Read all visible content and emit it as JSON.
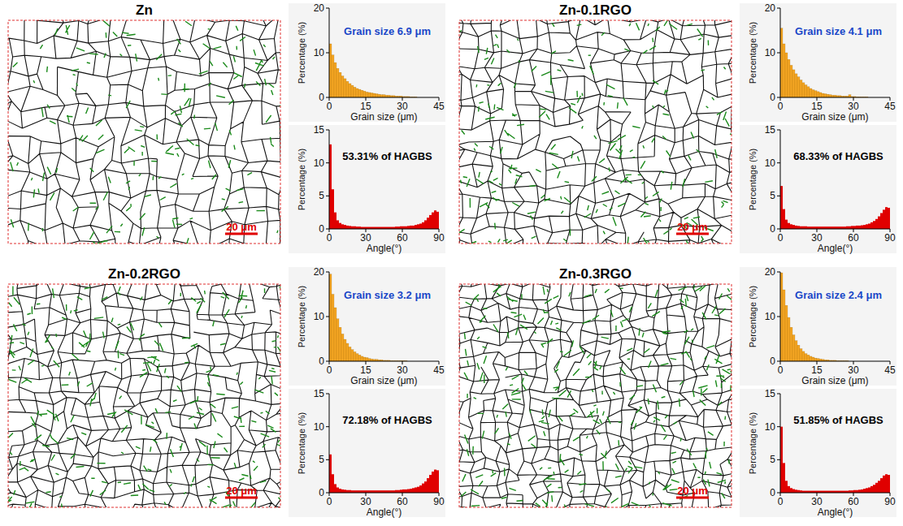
{
  "panels": [
    {
      "title": "Zn",
      "scale_bar": "20 μm"
    },
    {
      "title": "Zn-0.1RGO",
      "scale_bar": "20 μm"
    },
    {
      "title": "Zn-0.2RGO",
      "scale_bar": "20 μm"
    },
    {
      "title": "Zn-0.3RGO",
      "scale_bar": "20 μm"
    }
  ],
  "chart_data": [
    {
      "type": "histogram",
      "annotation": "Grain size 6.9 μm",
      "x_label": "Grain size (μm)",
      "y_label": "Percentage (%)",
      "color": "#f5a623",
      "bins": [
        0,
        1,
        2,
        3,
        4,
        5,
        6,
        7,
        8,
        9,
        10,
        11,
        12,
        13,
        14,
        15,
        16,
        17,
        18,
        19,
        20,
        21,
        22,
        23,
        24,
        25,
        26,
        27,
        28,
        29,
        30,
        31,
        32,
        33,
        34,
        35,
        36
      ],
      "values": [
        12,
        9.5,
        7.8,
        6.5,
        5.6,
        4.8,
        4.2,
        3.6,
        3.1,
        2.7,
        2.3,
        2.0,
        1.8,
        1.6,
        1.4,
        1.2,
        1.1,
        1.0,
        0.9,
        0.8,
        0.7,
        0.6,
        0.6,
        0.5,
        0.5,
        0.4,
        0.4,
        0.3,
        0.3,
        0.3,
        0.2,
        0.2,
        0.2,
        0.1,
        0.1,
        0.1
      ],
      "xlim": [
        0,
        45
      ],
      "ylim": [
        0,
        20
      ],
      "xticks": [
        0,
        15,
        30,
        45
      ],
      "yticks": [
        0,
        10,
        20
      ]
    },
    {
      "type": "histogram",
      "annotation": "53.31% of HAGBS",
      "x_label": "Angle(°)",
      "y_label": "Percentage (%)",
      "color": "#e00000",
      "bins": [
        0,
        2,
        4,
        6,
        8,
        10,
        12,
        14,
        16,
        18,
        20,
        22,
        24,
        26,
        28,
        30,
        32,
        34,
        36,
        38,
        40,
        42,
        44,
        46,
        48,
        50,
        52,
        54,
        56,
        58,
        60,
        62,
        64,
        66,
        68,
        70,
        72,
        74,
        76,
        78,
        80,
        82,
        84,
        86,
        88,
        90
      ],
      "values": [
        12.8,
        6.0,
        2.5,
        1.3,
        0.9,
        0.7,
        0.6,
        0.5,
        0.45,
        0.4,
        0.4,
        0.35,
        0.35,
        0.3,
        0.3,
        0.3,
        0.3,
        0.3,
        0.3,
        0.3,
        0.3,
        0.3,
        0.3,
        0.3,
        0.3,
        0.3,
        0.3,
        0.35,
        0.35,
        0.4,
        0.4,
        0.4,
        0.45,
        0.5,
        0.5,
        0.6,
        0.7,
        0.8,
        1.0,
        1.3,
        1.7,
        2.1,
        2.5,
        2.8,
        2.6
      ],
      "xlim": [
        0,
        90
      ],
      "ylim": [
        0,
        15
      ],
      "xticks": [
        0,
        30,
        60,
        90
      ],
      "yticks": [
        0,
        5,
        10,
        15
      ]
    },
    {
      "type": "histogram",
      "annotation": "Grain size 4.1 μm",
      "x_label": "Grain size (μm)",
      "y_label": "Percentage (%)",
      "color": "#f5a623",
      "bins": [
        0,
        1,
        2,
        3,
        4,
        5,
        6,
        7,
        8,
        9,
        10,
        11,
        12,
        13,
        14,
        15,
        16,
        17,
        18,
        19,
        20,
        21,
        22,
        23,
        24,
        25,
        26,
        27,
        28,
        29,
        30,
        31,
        32,
        33,
        34,
        35,
        36
      ],
      "values": [
        15.5,
        12,
        10,
        8.5,
        7.2,
        6.2,
        5.3,
        4.6,
        3.9,
        3.3,
        2.8,
        2.4,
        2.0,
        1.7,
        1.5,
        1.3,
        1.1,
        0.9,
        0.8,
        0.7,
        0.6,
        0.5,
        0.5,
        0.4,
        0.4,
        0.3,
        0.3,
        0.3,
        0.6,
        0.2,
        0.2,
        0.1,
        0.1,
        0.1,
        0.1,
        0.1
      ],
      "xlim": [
        0,
        45
      ],
      "ylim": [
        0,
        20
      ],
      "xticks": [
        0,
        15,
        30,
        45
      ],
      "yticks": [
        0,
        10,
        20
      ]
    },
    {
      "type": "histogram",
      "annotation": "68.33% of HAGBS",
      "x_label": "Angle(°)",
      "y_label": "Percentage (%)",
      "color": "#e00000",
      "bins": [
        0,
        2,
        4,
        6,
        8,
        10,
        12,
        14,
        16,
        18,
        20,
        22,
        24,
        26,
        28,
        30,
        32,
        34,
        36,
        38,
        40,
        42,
        44,
        46,
        48,
        50,
        52,
        54,
        56,
        58,
        60,
        62,
        64,
        66,
        68,
        70,
        72,
        74,
        76,
        78,
        80,
        82,
        84,
        86,
        88,
        90
      ],
      "values": [
        6.5,
        3.0,
        1.4,
        0.9,
        0.7,
        0.6,
        0.5,
        0.45,
        0.4,
        0.4,
        0.4,
        0.35,
        0.35,
        0.35,
        0.35,
        0.35,
        0.35,
        0.35,
        0.35,
        0.35,
        0.35,
        0.35,
        0.35,
        0.35,
        0.35,
        0.35,
        0.35,
        0.4,
        0.4,
        0.45,
        0.45,
        0.5,
        0.5,
        0.55,
        0.6,
        0.7,
        0.8,
        1.0,
        1.2,
        1.5,
        1.9,
        2.4,
        2.9,
        3.3,
        3.2
      ],
      "xlim": [
        0,
        90
      ],
      "ylim": [
        0,
        15
      ],
      "xticks": [
        0,
        30,
        60,
        90
      ],
      "yticks": [
        0,
        5,
        10,
        15
      ]
    },
    {
      "type": "histogram",
      "annotation": "Grain size 3.2 μm",
      "x_label": "Grain size (μm)",
      "y_label": "Percentage (%)",
      "color": "#f5a623",
      "bins": [
        0,
        1,
        2,
        3,
        4,
        5,
        6,
        7,
        8,
        9,
        10,
        11,
        12,
        13,
        14,
        15,
        16,
        17,
        18,
        19,
        20,
        21,
        22,
        23,
        24,
        25,
        26,
        27,
        28,
        29,
        30,
        31,
        32,
        33,
        34,
        35,
        36
      ],
      "values": [
        19.5,
        15,
        12,
        9.5,
        7.6,
        6.1,
        4.9,
        4.0,
        3.2,
        2.6,
        2.1,
        1.7,
        1.4,
        1.1,
        0.9,
        0.8,
        0.6,
        0.5,
        0.4,
        0.4,
        0.3,
        0.3,
        0.2,
        0.2,
        0.2,
        0.1,
        0.1,
        0.1,
        0.1,
        0.1,
        0.1,
        0.1,
        0,
        0,
        0,
        0
      ],
      "xlim": [
        0,
        45
      ],
      "ylim": [
        0,
        20
      ],
      "xticks": [
        0,
        15,
        30,
        45
      ],
      "yticks": [
        0,
        10,
        20
      ]
    },
    {
      "type": "histogram",
      "annotation": "72.18% of HAGBS",
      "x_label": "Angle(°)",
      "y_label": "Percentage (%)",
      "color": "#e00000",
      "bins": [
        0,
        2,
        4,
        6,
        8,
        10,
        12,
        14,
        16,
        18,
        20,
        22,
        24,
        26,
        28,
        30,
        32,
        34,
        36,
        38,
        40,
        42,
        44,
        46,
        48,
        50,
        52,
        54,
        56,
        58,
        60,
        62,
        64,
        66,
        68,
        70,
        72,
        74,
        76,
        78,
        80,
        82,
        84,
        86,
        88,
        90
      ],
      "values": [
        5.8,
        2.8,
        1.3,
        0.8,
        0.6,
        0.5,
        0.45,
        0.4,
        0.4,
        0.35,
        0.35,
        0.35,
        0.35,
        0.35,
        0.35,
        0.35,
        0.35,
        0.35,
        0.35,
        0.35,
        0.35,
        0.35,
        0.35,
        0.35,
        0.35,
        0.35,
        0.35,
        0.4,
        0.4,
        0.45,
        0.5,
        0.5,
        0.55,
        0.6,
        0.7,
        0.8,
        0.9,
        1.1,
        1.4,
        1.7,
        2.2,
        2.7,
        3.2,
        3.5,
        3.4
      ],
      "xlim": [
        0,
        90
      ],
      "ylim": [
        0,
        15
      ],
      "xticks": [
        0,
        30,
        60,
        90
      ],
      "yticks": [
        0,
        5,
        10,
        15
      ]
    },
    {
      "type": "histogram",
      "annotation": "Grain size 2.4 μm",
      "x_label": "Grain size (μm)",
      "y_label": "Percentage (%)",
      "color": "#f5a623",
      "bins": [
        0,
        1,
        2,
        3,
        4,
        5,
        6,
        7,
        8,
        9,
        10,
        11,
        12,
        13,
        14,
        15,
        16,
        17,
        18,
        19,
        20,
        21,
        22,
        23,
        24,
        25,
        26,
        27,
        28,
        29,
        30,
        31,
        32,
        33,
        34,
        35,
        36
      ],
      "values": [
        19.8,
        16,
        12.5,
        9.8,
        7.6,
        5.9,
        4.6,
        3.6,
        2.8,
        2.2,
        1.7,
        1.4,
        1.1,
        0.9,
        0.7,
        0.6,
        0.5,
        0.4,
        0.3,
        0.3,
        0.2,
        0.2,
        0.2,
        0.1,
        0.1,
        0.1,
        0.1,
        0.1,
        0,
        0,
        0,
        0,
        0,
        0,
        0,
        0
      ],
      "xlim": [
        0,
        45
      ],
      "ylim": [
        0,
        20
      ],
      "xticks": [
        0,
        15,
        30,
        45
      ],
      "yticks": [
        0,
        10,
        20
      ]
    },
    {
      "type": "histogram",
      "annotation": "51.85% of HAGBS",
      "x_label": "Angle(°)",
      "y_label": "Percentage (%)",
      "color": "#e00000",
      "bins": [
        0,
        2,
        4,
        6,
        8,
        10,
        12,
        14,
        16,
        18,
        20,
        22,
        24,
        26,
        28,
        30,
        32,
        34,
        36,
        38,
        40,
        42,
        44,
        46,
        48,
        50,
        52,
        54,
        56,
        58,
        60,
        62,
        64,
        66,
        68,
        70,
        72,
        74,
        76,
        78,
        80,
        82,
        84,
        86,
        88,
        90
      ],
      "values": [
        10.0,
        4.5,
        1.8,
        1.0,
        0.7,
        0.55,
        0.45,
        0.4,
        0.35,
        0.3,
        0.3,
        0.3,
        0.3,
        0.3,
        0.3,
        0.3,
        0.3,
        0.3,
        0.3,
        0.3,
        0.3,
        0.3,
        0.3,
        0.3,
        0.3,
        0.3,
        0.3,
        0.3,
        0.35,
        0.35,
        0.4,
        0.4,
        0.45,
        0.5,
        0.6,
        0.7,
        0.8,
        1.0,
        1.2,
        1.5,
        1.8,
        2.2,
        2.6,
        2.8,
        2.7
      ],
      "xlim": [
        0,
        90
      ],
      "ylim": [
        0,
        15
      ],
      "xticks": [
        0,
        30,
        60,
        90
      ],
      "yticks": [
        0,
        5,
        10,
        15
      ]
    }
  ]
}
